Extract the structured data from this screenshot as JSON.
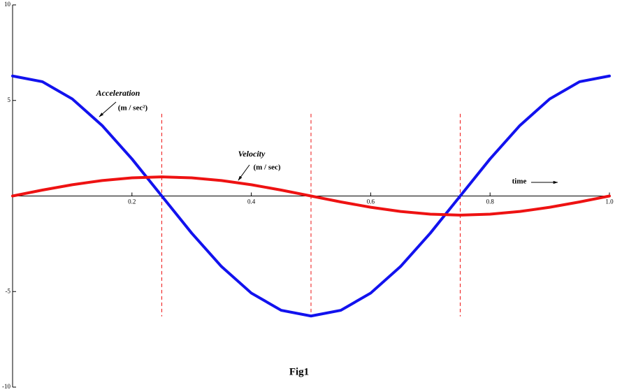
{
  "chart_data": {
    "type": "line",
    "caption": "Fig1",
    "x": [
      0,
      0.05,
      0.1,
      0.15,
      0.2,
      0.25,
      0.3,
      0.35,
      0.4,
      0.45,
      0.5,
      0.55,
      0.6,
      0.65,
      0.7,
      0.75,
      0.8,
      0.85,
      0.9,
      0.95,
      1
    ],
    "series": [
      {
        "name": "Acceleration",
        "unit": "(m / sec²)",
        "color": "#1212ee",
        "values": [
          6.28,
          5.98,
          5.08,
          3.69,
          1.94,
          0,
          -1.94,
          -3.69,
          -5.08,
          -5.98,
          -6.28,
          -5.98,
          -5.08,
          -3.69,
          -1.94,
          0,
          1.94,
          3.69,
          5.08,
          5.98,
          6.28
        ]
      },
      {
        "name": "Velocity",
        "unit": "(m / sec)",
        "color": "#ee1212",
        "values": [
          0,
          0.31,
          0.59,
          0.81,
          0.95,
          1,
          0.95,
          0.81,
          0.59,
          0.31,
          0,
          -0.31,
          -0.59,
          -0.81,
          -0.95,
          -1,
          -0.95,
          -0.81,
          -0.59,
          -0.31,
          0
        ]
      }
    ],
    "xlabel": "time",
    "xlim": [
      0,
      1
    ],
    "ylim": [
      -10,
      10
    ],
    "xticks": [
      0.2,
      0.4,
      0.6,
      0.8,
      {
        "value": 1,
        "label": "1.0"
      }
    ],
    "yticks": [
      -10,
      -5,
      5,
      10
    ],
    "reference_lines": {
      "x": [
        0.25,
        0.5,
        0.75
      ],
      "color": "#ee1212",
      "ymin": -6.3,
      "ymax": 4.3
    }
  }
}
